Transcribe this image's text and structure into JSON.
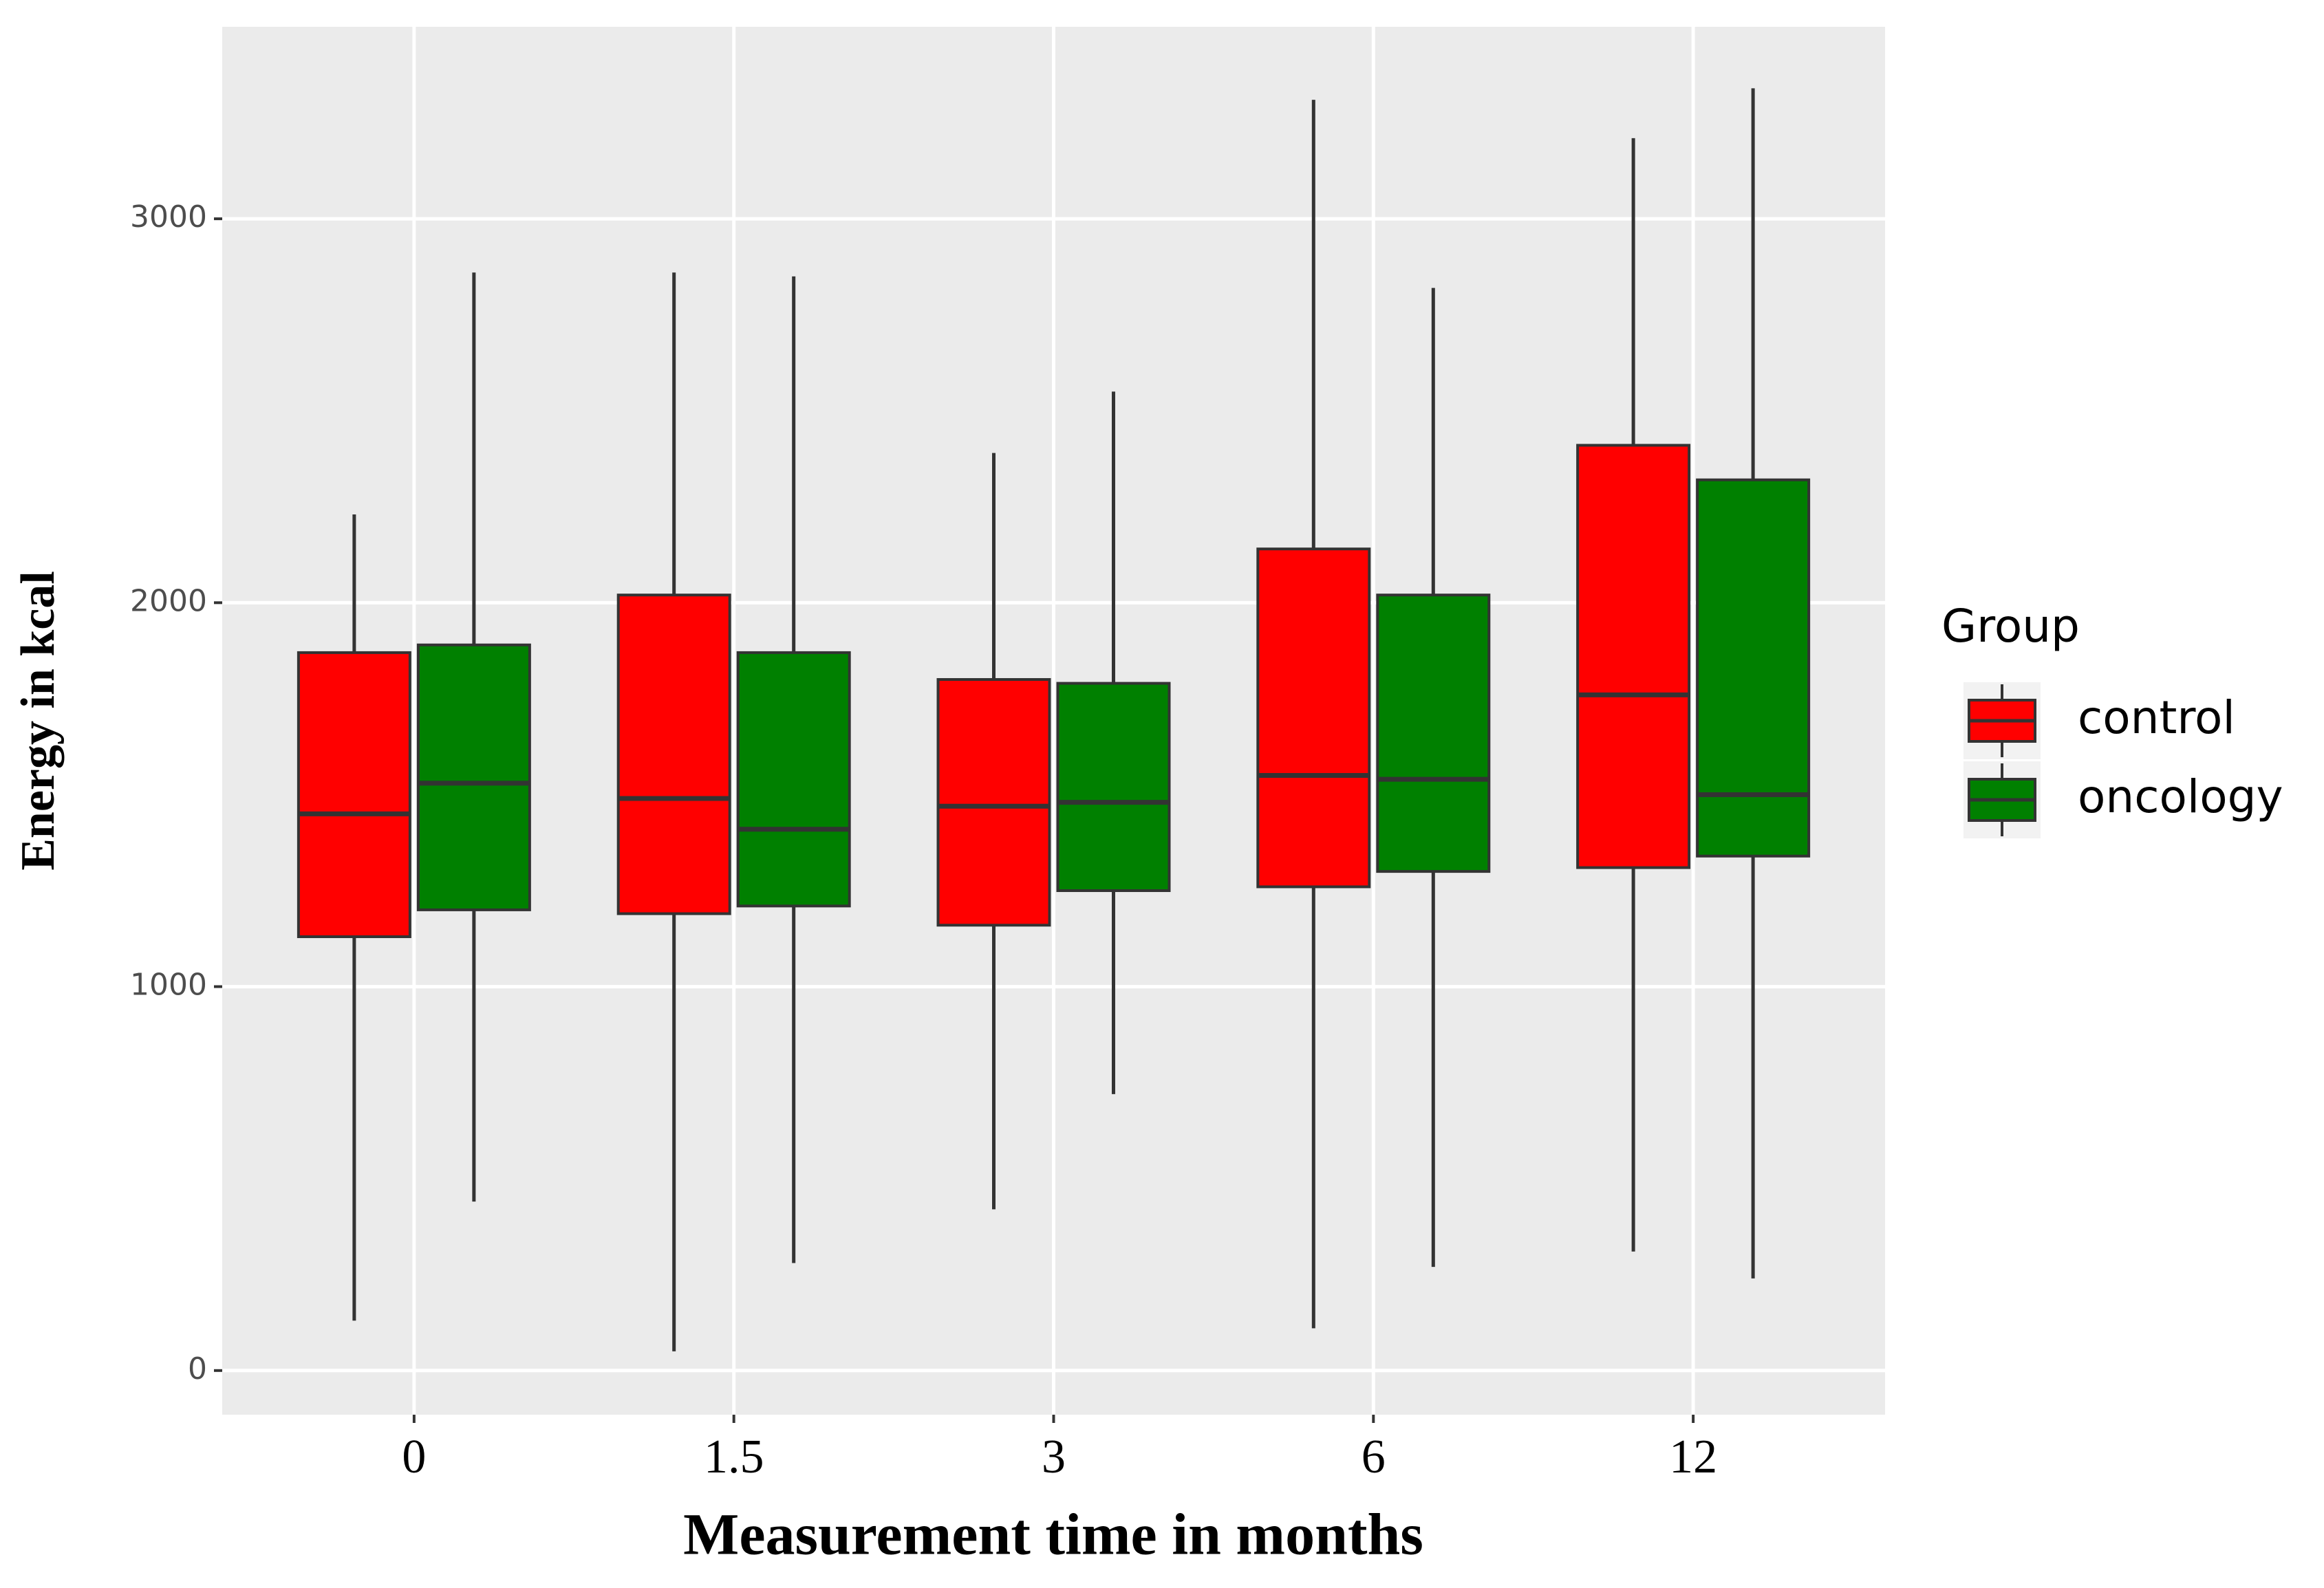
{
  "chart_data": {
    "type": "box",
    "x_label": "Measurement time in months",
    "y_label": "Energy in kcal",
    "categories": [
      "0",
      "1.5",
      "3",
      "6",
      "12"
    ],
    "ylim": [
      -115,
      3500
    ],
    "yticks": [
      0,
      1000,
      2000,
      3000
    ],
    "grid": true,
    "legend_title": "Group",
    "legend_position": "right",
    "series": [
      {
        "name": "control",
        "color": "#ff0000",
        "min": [
          130,
          50,
          420,
          110,
          310
        ],
        "q1": [
          1130,
          1190,
          1160,
          1260,
          1310
        ],
        "median": [
          1450,
          1490,
          1470,
          1550,
          1760
        ],
        "q3": [
          1870,
          2020,
          1800,
          2140,
          2410
        ],
        "max": [
          2230,
          2860,
          2390,
          3310,
          3210
        ]
      },
      {
        "name": "oncology",
        "color": "#008000",
        "min": [
          440,
          280,
          720,
          270,
          240
        ],
        "q1": [
          1200,
          1210,
          1250,
          1300,
          1340
        ],
        "median": [
          1530,
          1410,
          1480,
          1540,
          1500
        ],
        "q3": [
          1890,
          1870,
          1790,
          2020,
          2320
        ],
        "max": [
          2860,
          2850,
          2550,
          2820,
          3340
        ]
      }
    ]
  }
}
